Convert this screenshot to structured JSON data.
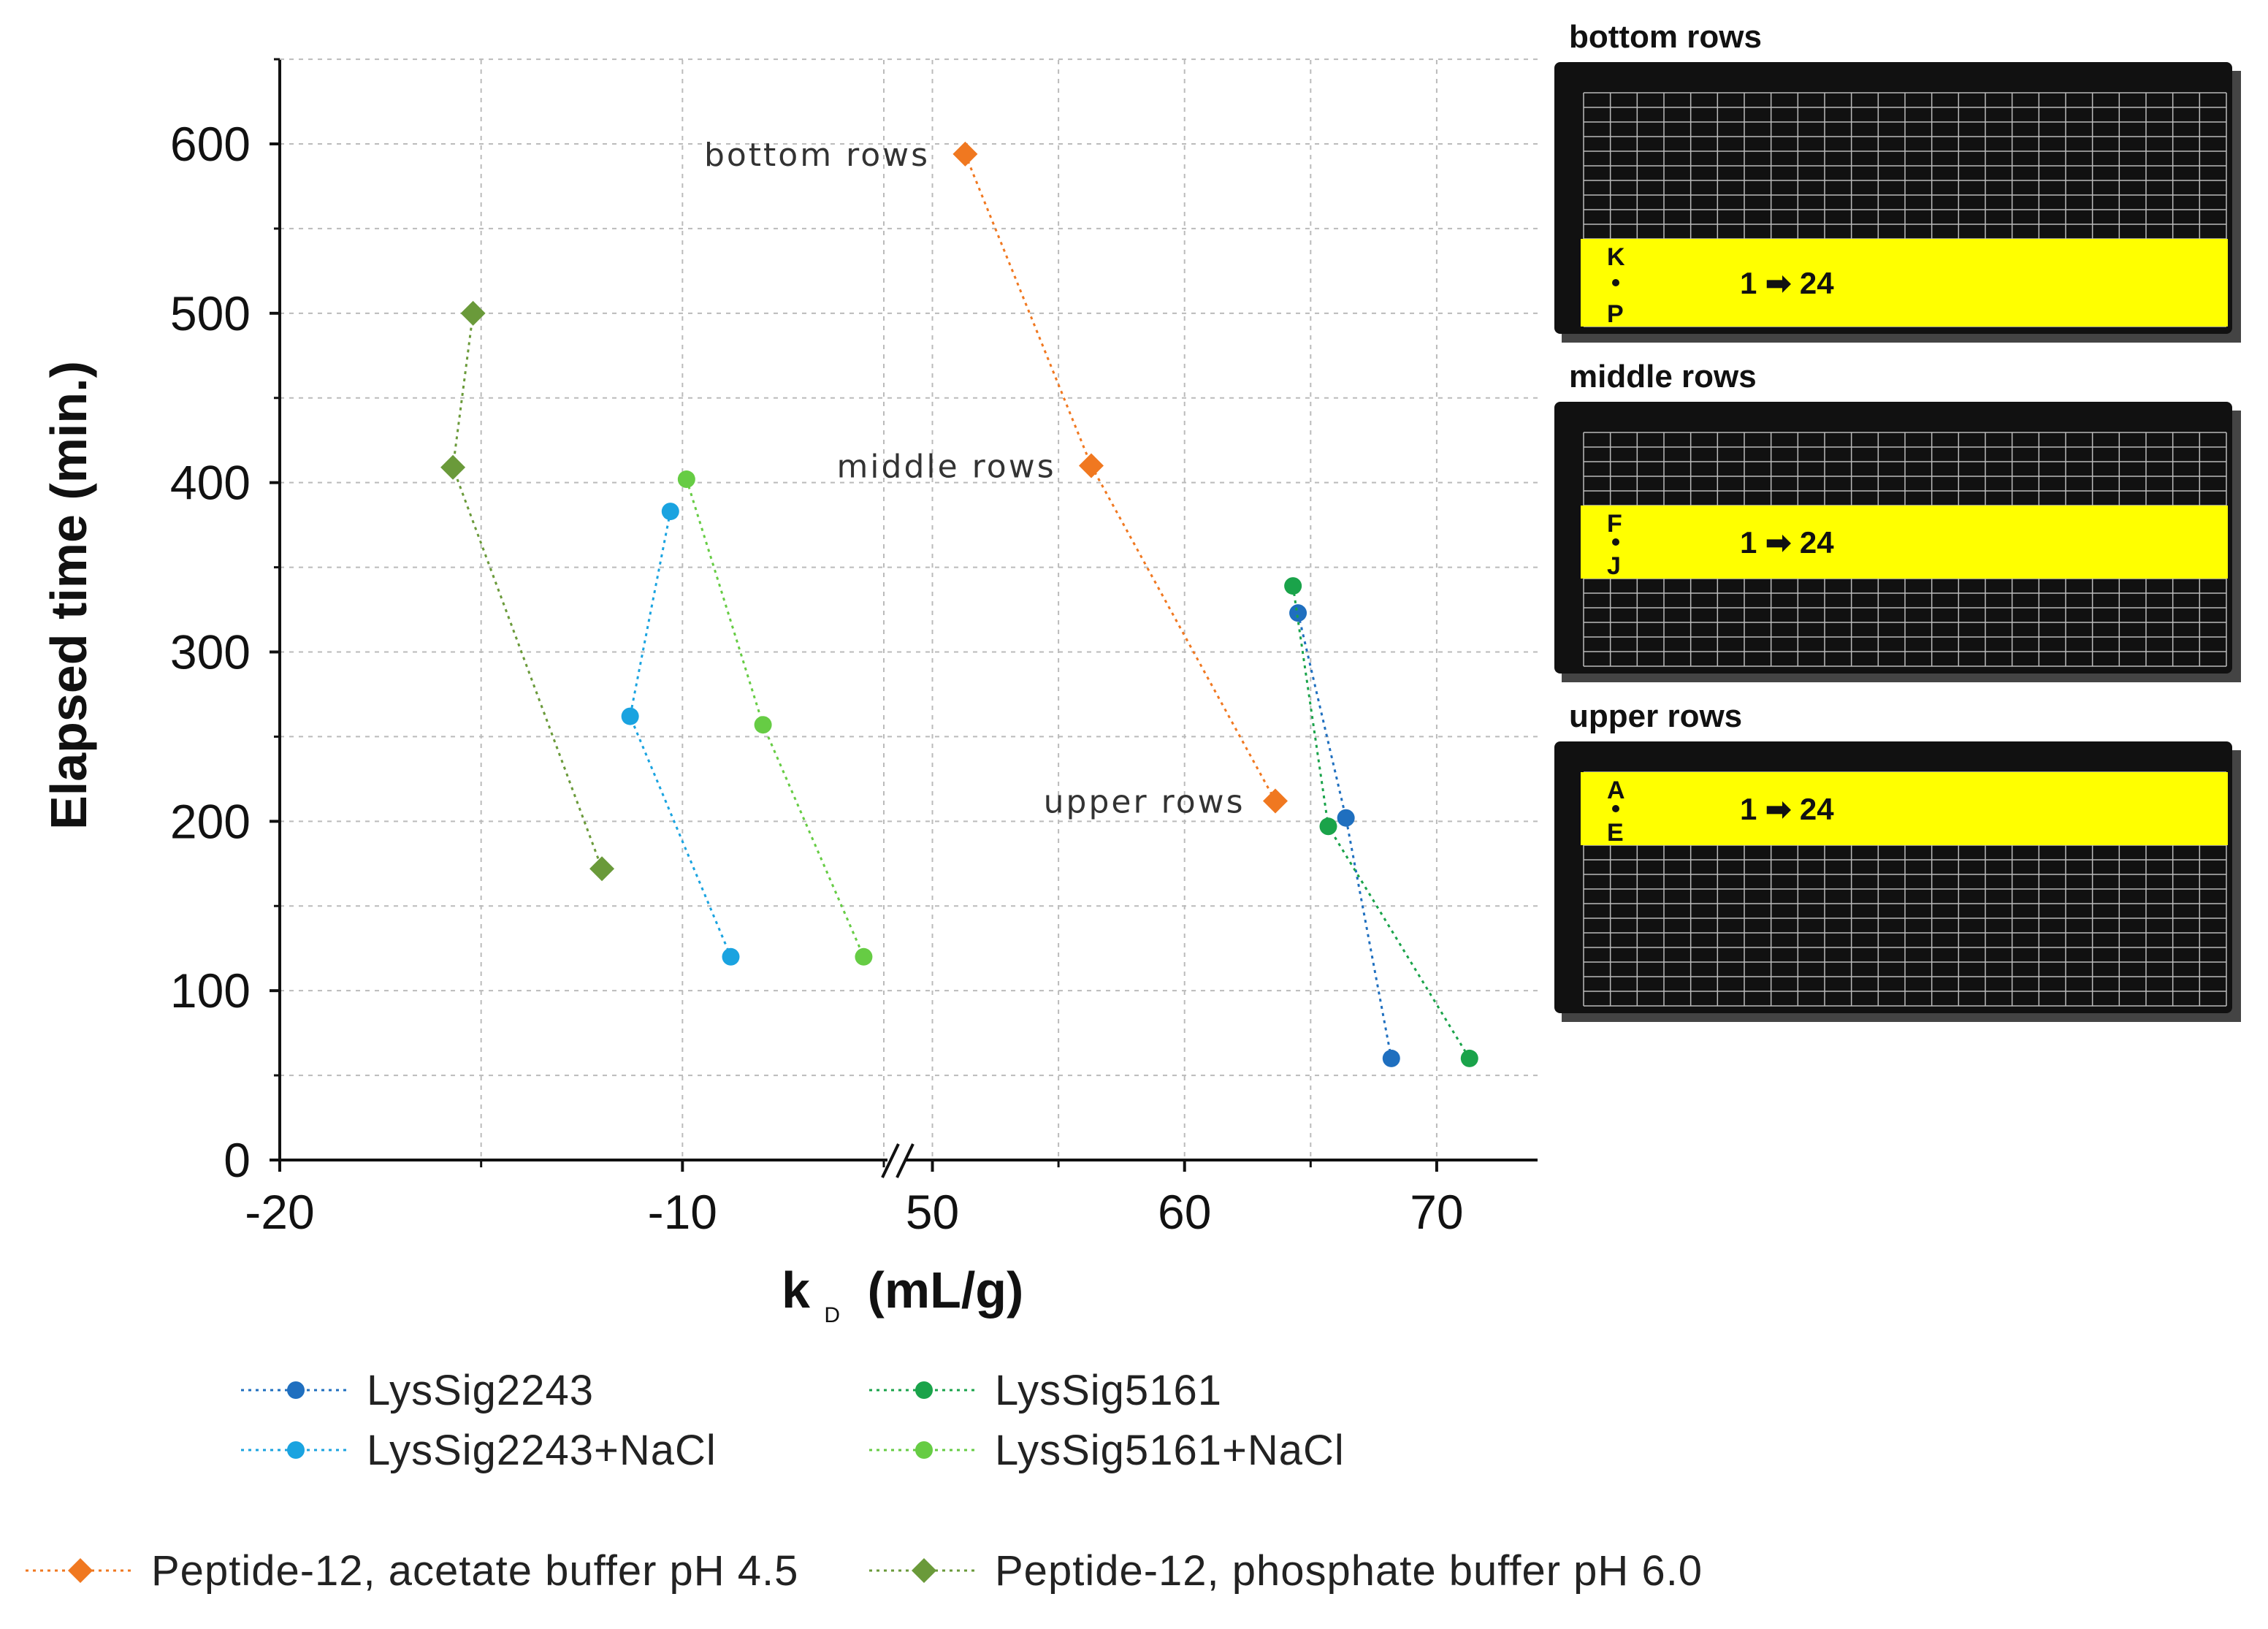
{
  "chart_data": {
    "type": "scatter",
    "title": "",
    "xlabel": "k",
    "xlabel_sub": "D",
    "xlabel_units": "(mL/g)",
    "ylabel": "Elapsed time (min.)",
    "ylim": [
      0,
      650
    ],
    "yticks": [
      "0",
      "100",
      "200",
      "300",
      "400",
      "500",
      "600"
    ],
    "x_segments": [
      {
        "xlim": [
          -20,
          -5
        ],
        "ticks": [
          "-20",
          "-10"
        ],
        "tick_values": [
          -20,
          -10
        ]
      },
      {
        "xlim": [
          49,
          74
        ],
        "ticks": [
          "50",
          "60",
          "70"
        ],
        "tick_values": [
          50,
          60,
          70
        ]
      }
    ],
    "grid": true,
    "annotations": [
      {
        "text": "bottom rows",
        "x": 51,
        "y": 594
      },
      {
        "text": "middle rows",
        "x": 56,
        "y": 410
      },
      {
        "text": "upper rows",
        "x": 63.5,
        "y": 212
      }
    ],
    "series": [
      {
        "name": "LysSig2243",
        "color": "#1f6fbf",
        "marker": "circle",
        "points": [
          [
            64.5,
            323
          ],
          [
            66.4,
            202
          ],
          [
            68.2,
            60
          ]
        ]
      },
      {
        "name": "LysSig2243+NaCl",
        "color": "#1aa3e0",
        "marker": "circle",
        "points": [
          [
            -10.3,
            383
          ],
          [
            -11.3,
            262
          ],
          [
            -8.8,
            120
          ]
        ]
      },
      {
        "name": "LysSig5161",
        "color": "#1aa34a",
        "marker": "circle",
        "points": [
          [
            64.3,
            339
          ],
          [
            65.7,
            197
          ],
          [
            71.3,
            60
          ]
        ]
      },
      {
        "name": "LysSig5161+NaCl",
        "color": "#66cc44",
        "marker": "circle",
        "points": [
          [
            -9.9,
            402
          ],
          [
            -8.0,
            257
          ],
          [
            -5.5,
            120
          ]
        ]
      },
      {
        "name": "Peptide-12, acetate buffer pH 4.5",
        "color": "#f07820",
        "marker": "diamond",
        "points": [
          [
            51.3,
            594
          ],
          [
            56.3,
            410
          ],
          [
            63.6,
            212
          ]
        ]
      },
      {
        "name": "Peptide-12, phosphate buffer pH 6.0",
        "color": "#6a9a3a",
        "marker": "diamond",
        "points": [
          [
            -15.2,
            500
          ],
          [
            -15.7,
            409
          ],
          [
            -12.0,
            172
          ]
        ]
      }
    ]
  },
  "plates": [
    {
      "title": "bottom rows",
      "row_start": "K",
      "row_end": "P",
      "cols": "1 ➡ 24",
      "band": "bottom"
    },
    {
      "title": "middle rows",
      "row_start": "F",
      "row_end": "J",
      "cols": "1 ➡ 24",
      "band": "middle"
    },
    {
      "title": "upper rows",
      "row_start": "A",
      "row_end": "E",
      "cols": "1 ➡ 24",
      "band": "top"
    }
  ],
  "colors": {
    "highlight": "#ffff00",
    "plate_bg": "#111111",
    "grid": "#bbbbbb"
  }
}
